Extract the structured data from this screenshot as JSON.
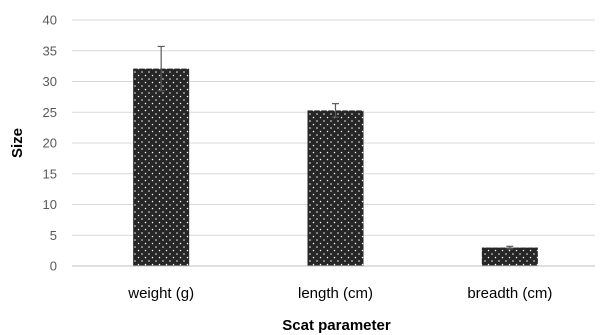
{
  "chart_data": {
    "type": "bar",
    "categories": [
      "weight (g)",
      "length (cm)",
      "breadth (cm)"
    ],
    "values": [
      32.1,
      25.3,
      3.0
    ],
    "error": [
      3.6,
      1.1,
      0.2
    ],
    "xlabel": "Scat parameter",
    "ylabel": "Size",
    "ylim": [
      0,
      40
    ],
    "yticks": [
      0,
      5,
      10,
      15,
      20,
      25,
      30,
      35,
      40
    ],
    "grid": true,
    "legend": "none",
    "colors": {
      "bar": "#262626",
      "dots": "#ffffff",
      "error_bar": "#595959"
    }
  }
}
